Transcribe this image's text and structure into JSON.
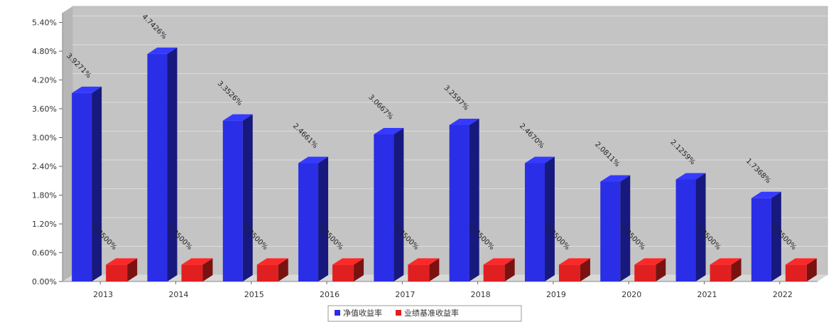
{
  "chart_data": {
    "type": "bar",
    "title": "",
    "categories": [
      "2013",
      "2014",
      "2015",
      "2016",
      "2017",
      "2018",
      "2019",
      "2020",
      "2021",
      "2022"
    ],
    "ylim": [
      0,
      5.6
    ],
    "yticks": [
      "0.00%",
      "0.60%",
      "1.20%",
      "1.80%",
      "2.40%",
      "3.00%",
      "3.60%",
      "4.20%",
      "4.80%",
      "5.40%"
    ],
    "ytick_values": [
      0,
      0.6,
      1.2,
      1.8,
      2.4,
      3.0,
      3.6,
      4.2,
      4.8,
      5.4
    ],
    "grid": true,
    "legend_position": "bottom-center",
    "series": [
      {
        "name": "净值收益率",
        "color": "#2a2ee6",
        "values": [
          3.9271,
          4.7426,
          3.3526,
          2.4661,
          3.0667,
          3.2597,
          2.467,
          2.0811,
          2.1259,
          1.7368
        ],
        "labels": [
          "3.9271%",
          "4.7426%",
          "3.3526%",
          "2.4661%",
          "3.0667%",
          "3.2597%",
          "2.4670%",
          "2.0811%",
          "2.1259%",
          "1.7368%"
        ]
      },
      {
        "name": "业绩基准收益率",
        "color": "#e02020",
        "values": [
          0.35,
          0.35,
          0.35,
          0.35,
          0.35,
          0.35,
          0.35,
          0.35,
          0.35,
          0.35
        ],
        "labels": [
          "0.3500%",
          "0.3500%",
          "0.3500%",
          "0.3500%",
          "0.3500%",
          "0.3500%",
          "0.3500%",
          "0.3500%",
          "0.3500%",
          "0.3500%"
        ]
      }
    ]
  }
}
